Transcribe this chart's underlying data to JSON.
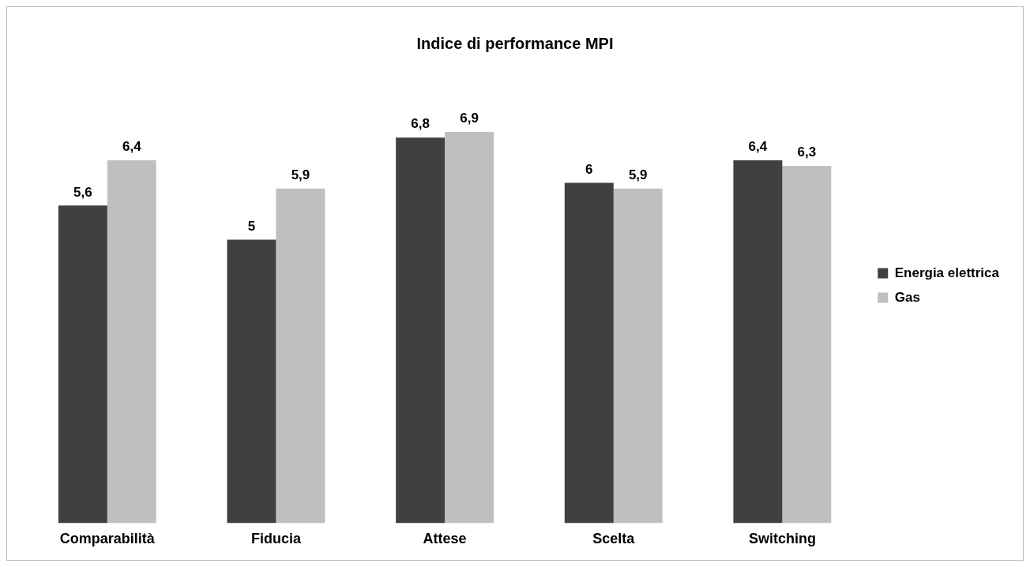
{
  "chart_data": {
    "type": "bar",
    "title": "Indice di performance MPI",
    "categories": [
      "Comparabilità",
      "Fiducia",
      "Attese",
      "Scelta",
      "Switching"
    ],
    "series": [
      {
        "name": "Energia elettrica",
        "color": "#404040",
        "values": [
          5.6,
          5,
          6.8,
          6,
          6.4
        ],
        "value_labels": [
          "5,6",
          "5",
          "6,8",
          "6",
          "6,4"
        ]
      },
      {
        "name": "Gas",
        "color": "#bfbfbf",
        "values": [
          6.4,
          5.9,
          6.9,
          5.9,
          6.3
        ],
        "value_labels": [
          "6,4",
          "5,9",
          "6,9",
          "5,9",
          "6,3"
        ]
      }
    ],
    "legend": "right",
    "grid": false
  }
}
